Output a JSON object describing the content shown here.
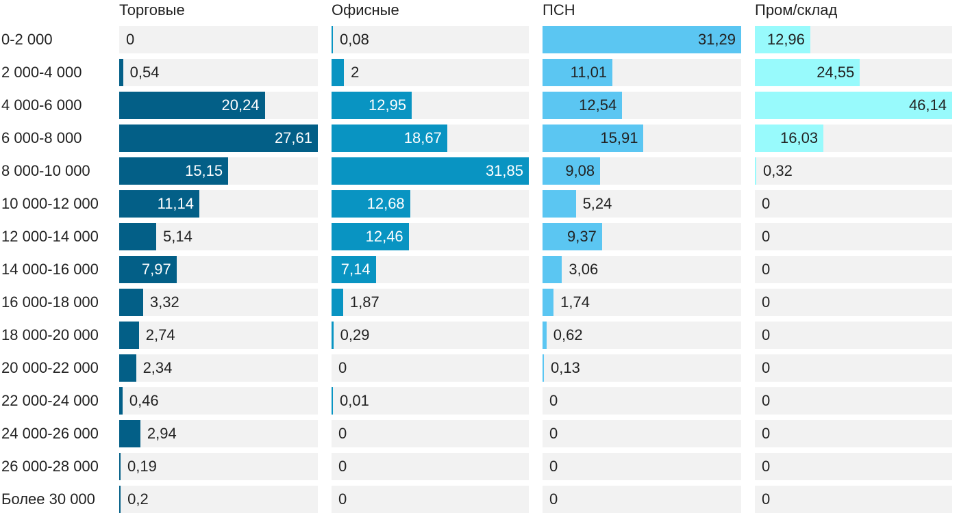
{
  "chart_data": {
    "type": "bar",
    "orientation": "horizontal",
    "layout": "small-multiples",
    "grid": false,
    "legend": "none",
    "categories": [
      "0-2 000",
      "2 000-4 000",
      "4 000-6 000",
      "6 000-8 000",
      "8 000-10 000",
      "10 000-12 000",
      "12 000-14 000",
      "14 000-16 000",
      "16 000-18 000",
      "18 000-20 000",
      "20 000-22 000",
      "22 000-24 000",
      "24 000-26 000",
      "26 000-28 000",
      "Более 30 000"
    ],
    "series": [
      {
        "name": "Торговые",
        "color": "#035f87",
        "values": [
          0,
          0.54,
          20.24,
          27.61,
          15.15,
          11.14,
          5.14,
          7.97,
          3.32,
          2.74,
          2.34,
          0.46,
          2.94,
          0.19,
          0.2
        ],
        "labels": [
          "0",
          "0,54",
          "20,24",
          "27,61",
          "15,15",
          "11,14",
          "5,14",
          "7,97",
          "3,32",
          "2,74",
          "2,34",
          "0,46",
          "2,94",
          "0,19",
          "0,2"
        ]
      },
      {
        "name": "Офисные",
        "color": "#0994c2",
        "values": [
          0.08,
          2,
          12.95,
          18.67,
          31.85,
          12.68,
          12.46,
          7.14,
          1.87,
          0.29,
          0,
          0.01,
          0,
          0,
          0
        ],
        "labels": [
          "0,08",
          "2",
          "12,95",
          "18,67",
          "31,85",
          "12,68",
          "12,46",
          "7,14",
          "1,87",
          "0,29",
          "0",
          "0,01",
          "0",
          "0",
          "0"
        ]
      },
      {
        "name": "ПСН",
        "color": "#5bc6f2",
        "values": [
          31.29,
          11.01,
          12.54,
          15.91,
          9.08,
          5.24,
          9.37,
          3.06,
          1.74,
          0.62,
          0.13,
          0,
          0,
          0,
          0
        ],
        "labels": [
          "31,29",
          "11,01",
          "12,54",
          "15,91",
          "9,08",
          "5,24",
          "9,37",
          "3,06",
          "1,74",
          "0,62",
          "0,13",
          "0",
          "0",
          "0",
          "0"
        ]
      },
      {
        "name": "Пром/склад",
        "color": "#98fafc",
        "values": [
          12.96,
          24.55,
          46.14,
          16.03,
          0.32,
          0,
          0,
          0,
          0,
          0,
          0,
          0,
          0,
          0,
          0
        ],
        "labels": [
          "12,96",
          "24,55",
          "46,14",
          "16,03",
          "0,32",
          "0",
          "0",
          "0",
          "0",
          "0",
          "0",
          "0",
          "0",
          "0",
          "0"
        ]
      }
    ]
  }
}
